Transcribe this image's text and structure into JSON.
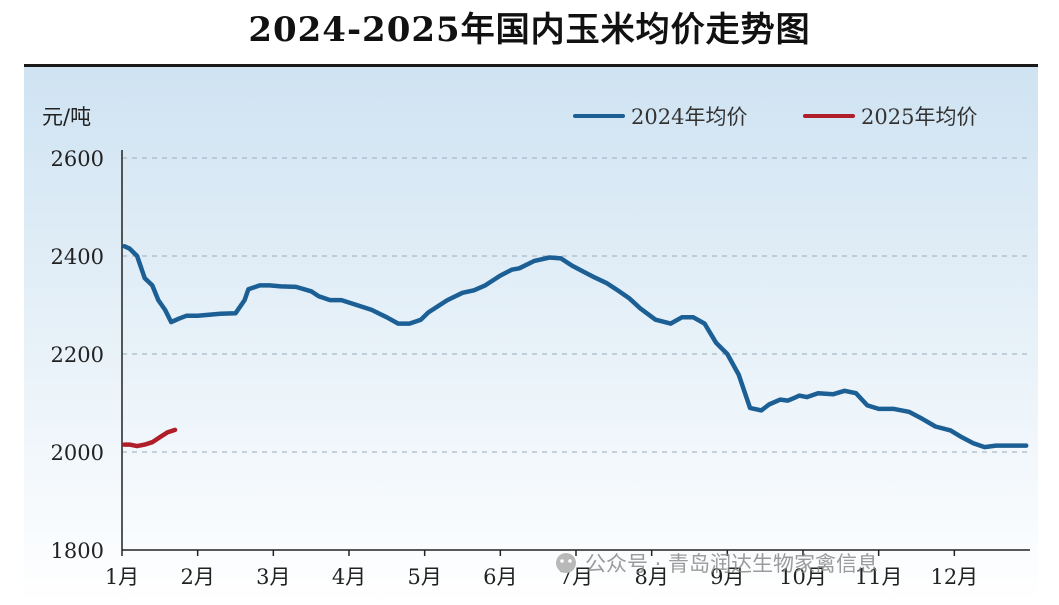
{
  "title": "2024-2025年国内玉米均价走势图",
  "watermark": "公众号 · 青岛润达生物家禽信息",
  "colors": {
    "bg_top": "#cfe3f2",
    "bg_bottom": "#ffffff",
    "series_2024": "#1c5f95",
    "series_2025": "#b01e2a",
    "grid": "#a9b8c6",
    "axis": "#222222"
  },
  "chart_data": {
    "type": "line",
    "title": "2024-2025年国内玉米均价走势图",
    "ylabel": "元/吨",
    "xlabel": "",
    "ylim": [
      1800,
      2600
    ],
    "yticks": [
      1800,
      2000,
      2200,
      2400,
      2600
    ],
    "xlim": [
      1,
      13
    ],
    "xticks": [
      {
        "label": "1月",
        "value": 1
      },
      {
        "label": "2月",
        "value": 2
      },
      {
        "label": "3月",
        "value": 3
      },
      {
        "label": "4月",
        "value": 4
      },
      {
        "label": "5月",
        "value": 5
      },
      {
        "label": "6月",
        "value": 6
      },
      {
        "label": "7月",
        "value": 7
      },
      {
        "label": "8月",
        "value": 8
      },
      {
        "label": "9月",
        "value": 9
      },
      {
        "label": "10月",
        "value": 10
      },
      {
        "label": "11月",
        "value": 11
      },
      {
        "label": "12月",
        "value": 12
      }
    ],
    "grid": true,
    "legend_position": "top-right",
    "series": [
      {
        "name": "2024年均价",
        "color": "#1c5f95",
        "x": [
          1.03,
          1.1,
          1.2,
          1.3,
          1.4,
          1.48,
          1.57,
          1.65,
          1.75,
          1.85,
          2.0,
          2.15,
          2.3,
          2.5,
          2.62,
          2.67,
          2.82,
          2.95,
          3.1,
          3.3,
          3.5,
          3.6,
          3.75,
          3.9,
          4.1,
          4.3,
          4.5,
          4.65,
          4.8,
          4.95,
          5.05,
          5.2,
          5.3,
          5.5,
          5.65,
          5.8,
          6.0,
          6.15,
          6.25,
          6.45,
          6.65,
          6.8,
          6.95,
          7.1,
          7.25,
          7.4,
          7.55,
          7.7,
          7.85,
          8.05,
          8.25,
          8.4,
          8.55,
          8.7,
          8.85,
          9.0,
          9.15,
          9.3,
          9.45,
          9.55,
          9.7,
          9.8,
          9.88,
          9.95,
          10.05,
          10.2,
          10.4,
          10.55,
          10.7,
          10.85,
          11.0,
          11.2,
          11.4,
          11.55,
          11.75,
          11.95,
          12.1,
          12.25,
          12.4,
          12.55,
          12.7,
          12.85,
          12.95
        ],
        "values": [
          2420,
          2415,
          2400,
          2355,
          2340,
          2310,
          2290,
          2265,
          2272,
          2278,
          2278,
          2280,
          2282,
          2283,
          2310,
          2332,
          2340,
          2340,
          2338,
          2337,
          2328,
          2318,
          2310,
          2310,
          2300,
          2290,
          2275,
          2262,
          2262,
          2270,
          2285,
          2300,
          2310,
          2325,
          2330,
          2340,
          2360,
          2372,
          2375,
          2390,
          2397,
          2395,
          2380,
          2368,
          2356,
          2345,
          2330,
          2314,
          2293,
          2270,
          2262,
          2275,
          2275,
          2262,
          2223,
          2200,
          2158,
          2090,
          2085,
          2097,
          2107,
          2105,
          2110,
          2115,
          2112,
          2120,
          2118,
          2125,
          2120,
          2095,
          2088,
          2088,
          2082,
          2070,
          2052,
          2044,
          2030,
          2018,
          2010,
          2013,
          2013,
          2013,
          2013
        ]
      },
      {
        "name": "2025年均价",
        "color": "#b01e2a",
        "x": [
          1.03,
          1.1,
          1.2,
          1.3,
          1.4,
          1.5,
          1.6,
          1.7
        ],
        "values": [
          2015,
          2015,
          2012,
          2015,
          2020,
          2030,
          2040,
          2045
        ]
      }
    ]
  }
}
